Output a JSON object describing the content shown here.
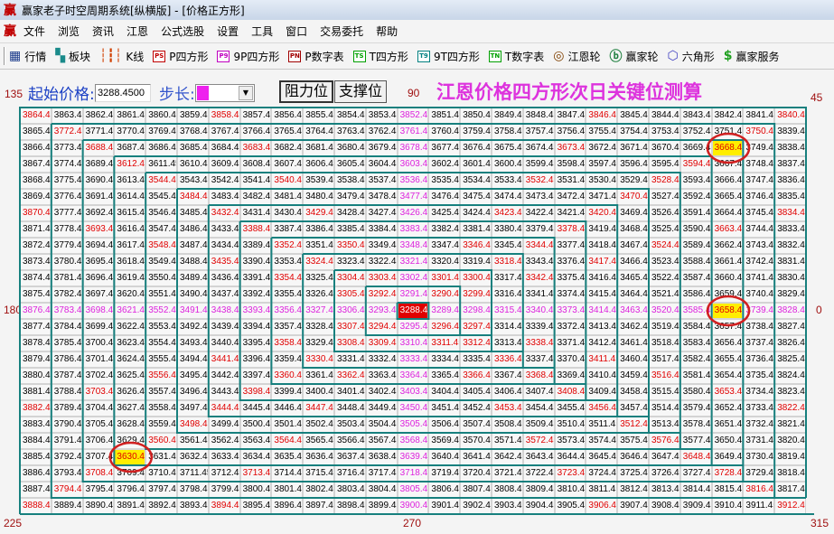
{
  "window": {
    "title": "赢家老子时空周期系统[纵横版] - [价格正方形]",
    "logo": "赢"
  },
  "menu": [
    "文件",
    "浏览",
    "资讯",
    "江恩",
    "公式选股",
    "设置",
    "工具",
    "窗口",
    "交易委托",
    "帮助"
  ],
  "toolbar": [
    {
      "icon": "grid-table-icon",
      "glyph": "▦",
      "color": "#1a3a8a",
      "label": "行情"
    },
    {
      "icon": "blocks-icon",
      "glyph": "▚",
      "color": "#1a8a8a",
      "label": "板块"
    },
    {
      "icon": "candlestick-icon",
      "glyph": "┆┇┆",
      "color": "#d04000",
      "label": "K线"
    },
    {
      "icon": "ps-icon",
      "box": "PS",
      "color": "#c00000",
      "label": "P四方形"
    },
    {
      "icon": "p9-icon",
      "box": "P9",
      "color": "#c000c0",
      "label": "9P四方形"
    },
    {
      "icon": "pn-icon",
      "box": "PN",
      "color": "#a00000",
      "label": "P数字表"
    },
    {
      "icon": "ts-icon",
      "box": "TS",
      "color": "#00a000",
      "label": "T四方形"
    },
    {
      "icon": "t9-icon",
      "box": "T9",
      "color": "#008080",
      "label": "9T四方形"
    },
    {
      "icon": "tn-icon",
      "box": "TN",
      "color": "#00a000",
      "label": "T数字表"
    },
    {
      "icon": "gann-wheel-icon",
      "glyph": "◎",
      "color": "#804000",
      "label": "江恩轮"
    },
    {
      "icon": "big-wheel-icon",
      "glyph": "ⓑ",
      "color": "#208040",
      "label": "赢家轮"
    },
    {
      "icon": "hexagon-icon",
      "glyph": "⬡",
      "color": "#4040c0",
      "label": "六角形"
    },
    {
      "icon": "dollar-icon",
      "glyph": "$",
      "color": "#20a020",
      "label": "赢家服务"
    }
  ],
  "controls": {
    "start_price_label": "起始价格:",
    "start_price_value": "3288.4500",
    "step_label": "步长:",
    "step_color": "#ee22ee",
    "resistance_button": "阻力位",
    "support_button": "支撑位",
    "heading": "江恩价格四方形次日关键位测算"
  },
  "degree_labels": {
    "d135": "135",
    "d90": "90",
    "d45": "45",
    "d180": "180",
    "d0": "0",
    "d225": "225",
    "d270": "270",
    "d315": "315"
  },
  "colors": {
    "angle_line_text": "#e00000",
    "axis_text": "#dd22dd",
    "center_bg": "#e00000",
    "center_text": "#ffffff",
    "highlight_bg": "#ffee00",
    "highlight_text": "#e00000",
    "circle": "#d02020",
    "spiral_line": "#17807e"
  },
  "center_value": 3288.45,
  "highlighted_values": [
    3668.45,
    3658.45,
    3630.45
  ],
  "grid": [
    [
      3864.45,
      3863.45,
      3862.45,
      3861.45,
      3860.45,
      3859.45,
      3858.45,
      3857.45,
      3856.45,
      3855.45,
      3854.45,
      3853.45,
      3852.45,
      3851.45,
      3850.45,
      3849.45,
      3848.45,
      3847.45,
      3846.45,
      3845.45,
      3844.45,
      3843.45,
      3842.45,
      3841.45,
      3840.45
    ],
    [
      3865.45,
      3772.45,
      3771.45,
      3770.45,
      3769.45,
      3768.45,
      3767.45,
      3766.45,
      3765.45,
      3764.45,
      3763.45,
      3762.45,
      3761.45,
      3760.45,
      3759.45,
      3758.45,
      3757.45,
      3756.45,
      3755.45,
      3754.45,
      3753.45,
      3752.45,
      3751.45,
      3750.45,
      3839.45
    ],
    [
      3866.45,
      3773.45,
      3688.45,
      3687.45,
      3686.45,
      3685.45,
      3684.45,
      3683.45,
      3682.45,
      3681.45,
      3680.45,
      3679.45,
      3678.45,
      3677.45,
      3676.45,
      3675.45,
      3674.45,
      3673.45,
      3672.45,
      3671.45,
      3670.45,
      3669.45,
      3668.45,
      3749.45,
      3838.45
    ],
    [
      3867.45,
      3774.45,
      3689.45,
      3612.45,
      3611.45,
      3610.45,
      3609.45,
      3608.45,
      3607.45,
      3606.45,
      3605.45,
      3604.45,
      3603.45,
      3602.45,
      3601.45,
      3600.45,
      3599.45,
      3598.45,
      3597.45,
      3596.45,
      3595.45,
      3594.45,
      3667.45,
      3748.45,
      3837.45
    ],
    [
      3868.45,
      3775.45,
      3690.45,
      3613.45,
      3544.45,
      3543.45,
      3542.45,
      3541.45,
      3540.45,
      3539.45,
      3538.45,
      3537.45,
      3536.45,
      3535.45,
      3534.45,
      3533.45,
      3532.45,
      3531.45,
      3530.45,
      3529.45,
      3528.45,
      3593.45,
      3666.45,
      3747.45,
      3836.45
    ],
    [
      3869.45,
      3776.45,
      3691.45,
      3614.45,
      3545.45,
      3484.45,
      3483.45,
      3482.45,
      3481.45,
      3480.45,
      3479.45,
      3478.45,
      3477.45,
      3476.45,
      3475.45,
      3474.45,
      3473.45,
      3472.45,
      3471.45,
      3470.45,
      3527.45,
      3592.45,
      3665.45,
      3746.45,
      3835.45
    ],
    [
      3870.45,
      3777.45,
      3692.45,
      3615.45,
      3546.45,
      3485.45,
      3432.45,
      3431.45,
      3430.45,
      3429.45,
      3428.45,
      3427.45,
      3426.45,
      3425.45,
      3424.45,
      3423.45,
      3422.45,
      3421.45,
      3420.45,
      3469.45,
      3526.45,
      3591.45,
      3664.45,
      3745.45,
      3834.45
    ],
    [
      3871.45,
      3778.45,
      3693.45,
      3616.45,
      3547.45,
      3486.45,
      3433.45,
      3388.45,
      3387.45,
      3386.45,
      3385.45,
      3384.45,
      3383.45,
      3382.45,
      3381.45,
      3380.45,
      3379.45,
      3378.45,
      3419.45,
      3468.45,
      3525.45,
      3590.45,
      3663.45,
      3744.45,
      3833.45
    ],
    [
      3872.45,
      3779.45,
      3694.45,
      3617.45,
      3548.45,
      3487.45,
      3434.45,
      3389.45,
      3352.45,
      3351.45,
      3350.45,
      3349.45,
      3348.45,
      3347.45,
      3346.45,
      3345.45,
      3344.45,
      3377.45,
      3418.45,
      3467.45,
      3524.45,
      3589.45,
      3662.45,
      3743.45,
      3832.45
    ],
    [
      3873.45,
      3780.45,
      3695.45,
      3618.45,
      3549.45,
      3488.45,
      3435.45,
      3390.45,
      3353.45,
      3324.45,
      3323.45,
      3322.45,
      3321.45,
      3320.45,
      3319.45,
      3318.45,
      3343.45,
      3376.45,
      3417.45,
      3466.45,
      3523.45,
      3588.45,
      3661.45,
      3742.45,
      3831.45
    ],
    [
      3874.45,
      3781.45,
      3696.45,
      3619.45,
      3550.45,
      3489.45,
      3436.45,
      3391.45,
      3354.45,
      3325.45,
      3304.45,
      3303.45,
      3302.45,
      3301.45,
      3300.45,
      3317.45,
      3342.45,
      3375.45,
      3416.45,
      3465.45,
      3522.45,
      3587.45,
      3660.45,
      3741.45,
      3830.45
    ],
    [
      3875.45,
      3782.45,
      3697.45,
      3620.45,
      3551.45,
      3490.45,
      3437.45,
      3392.45,
      3355.45,
      3326.45,
      3305.45,
      3292.45,
      3291.45,
      3290.45,
      3299.45,
      3316.45,
      3341.45,
      3374.45,
      3415.45,
      3464.45,
      3521.45,
      3586.45,
      3659.45,
      3740.45,
      3829.45
    ],
    [
      3876.45,
      3783.45,
      3698.45,
      3621.45,
      3552.45,
      3491.45,
      3438.45,
      3393.45,
      3356.45,
      3327.45,
      3306.45,
      3293.45,
      3288.45,
      3289.45,
      3298.45,
      3315.45,
      3340.45,
      3373.45,
      3414.45,
      3463.45,
      3520.45,
      3585.45,
      3658.45,
      3739.45,
      3828.45
    ],
    [
      3877.45,
      3784.45,
      3699.45,
      3622.45,
      3553.45,
      3492.45,
      3439.45,
      3394.45,
      3357.45,
      3328.45,
      3307.45,
      3294.45,
      3295.45,
      3296.45,
      3297.45,
      3314.45,
      3339.45,
      3372.45,
      3413.45,
      3462.45,
      3519.45,
      3584.45,
      3657.45,
      3738.45,
      3827.45
    ],
    [
      3878.45,
      3785.45,
      3700.45,
      3623.45,
      3554.45,
      3493.45,
      3440.45,
      3395.45,
      3358.45,
      3329.45,
      3308.45,
      3309.45,
      3310.45,
      3311.45,
      3312.45,
      3313.45,
      3338.45,
      3371.45,
      3412.45,
      3461.45,
      3518.45,
      3583.45,
      3656.45,
      3737.45,
      3826.45
    ],
    [
      3879.45,
      3786.45,
      3701.45,
      3624.45,
      3555.45,
      3494.45,
      3441.45,
      3396.45,
      3359.45,
      3330.45,
      3331.45,
      3332.45,
      3333.45,
      3334.45,
      3335.45,
      3336.45,
      3337.45,
      3370.45,
      3411.45,
      3460.45,
      3517.45,
      3582.45,
      3655.45,
      3736.45,
      3825.45
    ],
    [
      3880.45,
      3787.45,
      3702.45,
      3625.45,
      3556.45,
      3495.45,
      3442.45,
      3397.45,
      3360.45,
      3361.45,
      3362.45,
      3363.45,
      3364.45,
      3365.45,
      3366.45,
      3367.45,
      3368.45,
      3369.45,
      3410.45,
      3459.45,
      3516.45,
      3581.45,
      3654.45,
      3735.45,
      3824.45
    ],
    [
      3881.45,
      3788.45,
      3703.45,
      3626.45,
      3557.45,
      3496.45,
      3443.45,
      3398.45,
      3399.45,
      3400.45,
      3401.45,
      3402.45,
      3403.45,
      3404.45,
      3405.45,
      3406.45,
      3407.45,
      3408.45,
      3409.45,
      3458.45,
      3515.45,
      3580.45,
      3653.45,
      3734.45,
      3823.45
    ],
    [
      3882.45,
      3789.45,
      3704.45,
      3627.45,
      3558.45,
      3497.45,
      3444.45,
      3445.45,
      3446.45,
      3447.45,
      3448.45,
      3449.45,
      3450.45,
      3451.45,
      3452.45,
      3453.45,
      3454.45,
      3455.45,
      3456.45,
      3457.45,
      3514.45,
      3579.45,
      3652.45,
      3733.45,
      3822.45
    ],
    [
      3883.45,
      3790.45,
      3705.45,
      3628.45,
      3559.45,
      3498.45,
      3499.45,
      3500.45,
      3501.45,
      3502.45,
      3503.45,
      3504.45,
      3505.45,
      3506.45,
      3507.45,
      3508.45,
      3509.45,
      3510.45,
      3511.45,
      3512.45,
      3513.45,
      3578.45,
      3651.45,
      3732.45,
      3821.45
    ],
    [
      3884.45,
      3791.45,
      3706.45,
      3629.45,
      3560.45,
      3561.45,
      3562.45,
      3563.45,
      3564.45,
      3565.45,
      3566.45,
      3567.45,
      3568.45,
      3569.45,
      3570.45,
      3571.45,
      3572.45,
      3573.45,
      3574.45,
      3575.45,
      3576.45,
      3577.45,
      3650.45,
      3731.45,
      3820.45
    ],
    [
      3885.45,
      3792.45,
      3707.45,
      3630.45,
      3631.45,
      3632.45,
      3633.45,
      3634.45,
      3635.45,
      3636.45,
      3637.45,
      3638.45,
      3639.45,
      3640.45,
      3641.45,
      3642.45,
      3643.45,
      3644.45,
      3645.45,
      3646.45,
      3647.45,
      3648.45,
      3649.45,
      3730.45,
      3819.45
    ],
    [
      3886.45,
      3793.45,
      3708.45,
      3709.45,
      3710.45,
      3711.45,
      3712.45,
      3713.45,
      3714.45,
      3715.45,
      3716.45,
      3717.45,
      3718.45,
      3719.45,
      3720.45,
      3721.45,
      3722.45,
      3723.45,
      3724.45,
      3725.45,
      3726.45,
      3727.45,
      3728.45,
      3729.45,
      3818.45
    ],
    [
      3887.45,
      3794.45,
      3795.45,
      3796.45,
      3797.45,
      3798.45,
      3799.45,
      3800.45,
      3801.45,
      3802.45,
      3803.45,
      3804.45,
      3805.45,
      3806.45,
      3807.45,
      3808.45,
      3809.45,
      3810.45,
      3811.45,
      3812.45,
      3813.45,
      3814.45,
      3815.45,
      3816.45,
      3817.45
    ],
    [
      3888.45,
      3889.45,
      3890.45,
      3891.45,
      3892.45,
      3893.45,
      3894.45,
      3895.45,
      3896.45,
      3897.45,
      3898.45,
      3899.45,
      3900.45,
      3901.45,
      3902.45,
      3903.45,
      3904.45,
      3905.45,
      3906.45,
      3907.45,
      3908.45,
      3909.45,
      3910.45,
      3911.45,
      3912.45
    ]
  ]
}
